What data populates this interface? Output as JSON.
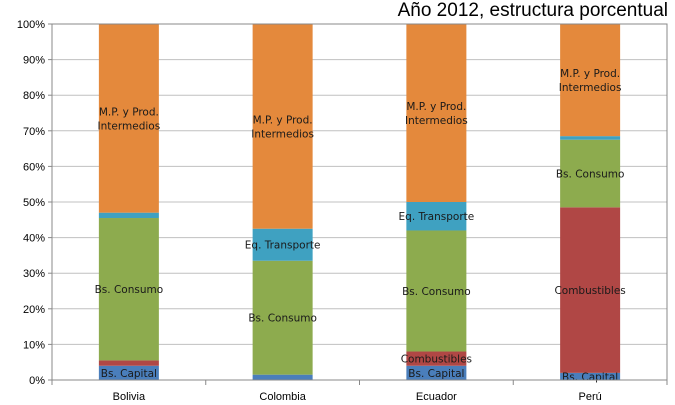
{
  "chart_data": {
    "type": "bar",
    "stacked": true,
    "title": "Año 2012, estructura porcentual",
    "categories": [
      "Bolivia",
      "Colombia",
      "Ecuador",
      "Perú"
    ],
    "series": [
      {
        "name": "Bs. Capital",
        "color": "#4a7ebb",
        "values": [
          4,
          1.5,
          4,
          2
        ]
      },
      {
        "name": "Combustibles",
        "color": "#b04745",
        "values": [
          1.5,
          0,
          4,
          46.5
        ]
      },
      {
        "name": "Bs. Consumo",
        "color": "#8dab4e",
        "values": [
          40,
          32,
          34,
          19
        ]
      },
      {
        "name": "Eq. Transporte",
        "color": "#3fa1c1",
        "values": [
          1.5,
          9,
          8,
          1
        ]
      },
      {
        "name": "M.P. y Prod. Intermedios",
        "color": "#e4893c",
        "values": [
          53,
          57.5,
          50,
          31.5
        ]
      }
    ],
    "data_labels": [
      {
        "category": 0,
        "series": 0,
        "text": "Bs. Capital"
      },
      {
        "category": 0,
        "series": 2,
        "text": "Bs. Consumo"
      },
      {
        "category": 0,
        "series": 4,
        "lines": [
          "M.P. y Prod.",
          "Intermedios"
        ]
      },
      {
        "category": 1,
        "series": 2,
        "text": "Bs. Consumo"
      },
      {
        "category": 1,
        "series": 3,
        "text": "Eq. Transporte"
      },
      {
        "category": 1,
        "series": 4,
        "lines": [
          "M.P. y Prod.",
          "Intermedios"
        ]
      },
      {
        "category": 2,
        "series": 0,
        "text": "Bs. Capital"
      },
      {
        "category": 2,
        "series": 1,
        "text": "Combustibles"
      },
      {
        "category": 2,
        "series": 2,
        "text": "Bs. Consumo"
      },
      {
        "category": 2,
        "series": 3,
        "text": "Eq. Transporte"
      },
      {
        "category": 2,
        "series": 4,
        "lines": [
          "M.P. y Prod.",
          "Intermedios"
        ]
      },
      {
        "category": 3,
        "series": 0,
        "text": "Bs. Capital"
      },
      {
        "category": 3,
        "series": 1,
        "text": "Combustibles"
      },
      {
        "category": 3,
        "series": 2,
        "text": "Bs. Consumo"
      },
      {
        "category": 3,
        "series": 4,
        "lines": [
          "M.P. y Prod.",
          "Intermedios"
        ]
      }
    ],
    "y_ticks": [
      "0%",
      "10%",
      "20%",
      "30%",
      "40%",
      "50%",
      "60%",
      "70%",
      "80%",
      "90%",
      "100%"
    ],
    "ylim": [
      0,
      100
    ],
    "grid": true,
    "gridline_color": "#c0c0c0"
  }
}
